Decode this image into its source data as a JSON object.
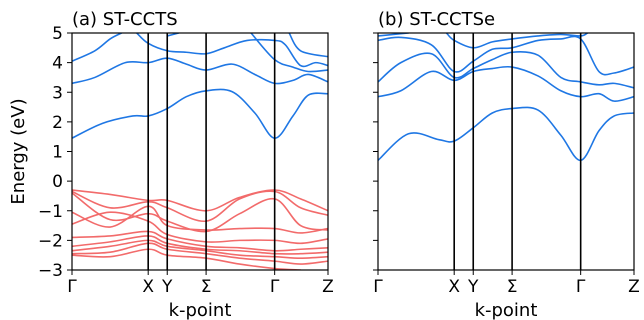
{
  "chart_data": [
    {
      "type": "line",
      "title": "(a) ST-CCTS",
      "xlabel": "k-point",
      "ylabel": "Energy (eV)",
      "ylim": [
        -3,
        5
      ],
      "yticks": [
        -3,
        -2,
        -1,
        0,
        1,
        2,
        3,
        4,
        5
      ],
      "x_ticks": [
        {
          "x": 0.0,
          "label": "Γ"
        },
        {
          "x": 1.0,
          "label": "X"
        },
        {
          "x": 1.25,
          "label": "Y"
        },
        {
          "x": 1.76,
          "label": "Σ"
        },
        {
          "x": 2.66,
          "label": "Γ"
        },
        {
          "x": 3.36,
          "label": "Z"
        }
      ],
      "series": [
        {
          "color": "#1f77e4",
          "band": "conduction",
          "points": [
            [
              0,
              1.45
            ],
            [
              0.4,
              1.95
            ],
            [
              0.8,
              2.2
            ],
            [
              1.0,
              2.2
            ],
            [
              1.25,
              2.45
            ],
            [
              1.5,
              2.85
            ],
            [
              1.76,
              3.05
            ],
            [
              2.1,
              3.02
            ],
            [
              2.4,
              2.3
            ],
            [
              2.66,
              1.45
            ],
            [
              2.9,
              2.2
            ],
            [
              3.1,
              2.9
            ],
            [
              3.36,
              2.95
            ]
          ]
        },
        {
          "color": "#1f77e4",
          "band": "conduction",
          "points": [
            [
              0,
              3.3
            ],
            [
              0.3,
              3.5
            ],
            [
              0.7,
              4.0
            ],
            [
              1.0,
              4.0
            ],
            [
              1.25,
              4.15
            ],
            [
              1.5,
              3.95
            ],
            [
              1.76,
              3.75
            ],
            [
              2.1,
              3.95
            ],
            [
              2.4,
              3.6
            ],
            [
              2.66,
              3.3
            ],
            [
              2.9,
              3.4
            ],
            [
              3.1,
              3.6
            ],
            [
              3.36,
              3.35
            ]
          ]
        },
        {
          "color": "#1f77e4",
          "band": "conduction",
          "points": [
            [
              0,
              4.05
            ],
            [
              0.3,
              4.4
            ],
            [
              0.5,
              4.8
            ],
            [
              0.65,
              5.0
            ]
          ]
        },
        {
          "color": "#1f77e4",
          "band": "conduction",
          "points": [
            [
              0.85,
              5.0
            ],
            [
              1.0,
              4.65
            ],
            [
              1.25,
              4.4
            ],
            [
              1.5,
              4.35
            ],
            [
              1.76,
              4.3
            ],
            [
              2.0,
              4.5
            ],
            [
              2.3,
              4.75
            ],
            [
              2.66,
              4.75
            ],
            [
              2.8,
              4.6
            ],
            [
              3.0,
              3.9
            ],
            [
              3.2,
              4.0
            ],
            [
              3.36,
              3.9
            ]
          ]
        },
        {
          "color": "#1f77e4",
          "band": "conduction",
          "points": [
            [
              1.25,
              4.9
            ],
            [
              1.4,
              5.0
            ]
          ]
        },
        {
          "color": "#1f77e4",
          "band": "conduction",
          "points": [
            [
              2.35,
              5.0
            ],
            [
              2.66,
              4.1
            ],
            [
              2.9,
              3.85
            ],
            [
              3.1,
              3.7
            ],
            [
              3.36,
              3.75
            ]
          ]
        },
        {
          "color": "#1f77e4",
          "band": "conduction",
          "points": [
            [
              2.85,
              5.0
            ],
            [
              3.0,
              4.4
            ],
            [
              3.36,
              4.2
            ]
          ]
        },
        {
          "color": "#f26b6b",
          "band": "valence",
          "points": [
            [
              0,
              -0.3
            ],
            [
              0.5,
              -0.45
            ],
            [
              1.0,
              -0.65
            ],
            [
              1.25,
              -0.65
            ],
            [
              1.76,
              -1.0
            ],
            [
              2.2,
              -0.55
            ],
            [
              2.66,
              -0.3
            ],
            [
              3.0,
              -0.6
            ],
            [
              3.36,
              -1.0
            ]
          ]
        },
        {
          "color": "#f26b6b",
          "band": "valence",
          "points": [
            [
              0,
              -0.35
            ],
            [
              0.5,
              -0.9
            ],
            [
              1.0,
              -0.7
            ],
            [
              1.25,
              -0.9
            ],
            [
              1.76,
              -1.35
            ],
            [
              2.2,
              -0.6
            ],
            [
              2.66,
              -0.35
            ],
            [
              3.0,
              -0.9
            ],
            [
              3.36,
              -1.15
            ]
          ]
        },
        {
          "color": "#f26b6b",
          "band": "valence",
          "points": [
            [
              0,
              -0.4
            ],
            [
              0.5,
              -1.3
            ],
            [
              1.0,
              -1.1
            ],
            [
              1.25,
              -1.35
            ],
            [
              1.76,
              -1.7
            ],
            [
              2.2,
              -1.1
            ],
            [
              2.66,
              -0.6
            ],
            [
              3.0,
              -1.5
            ],
            [
              3.36,
              -1.65
            ]
          ]
        },
        {
          "color": "#f26b6b",
          "band": "valence",
          "points": [
            [
              0,
              -1.05
            ],
            [
              0.5,
              -1.55
            ],
            [
              1.0,
              -0.85
            ],
            [
              1.25,
              -1.5
            ],
            [
              1.76,
              -1.65
            ],
            [
              2.2,
              -1.6
            ],
            [
              2.66,
              -1.6
            ],
            [
              3.0,
              -1.75
            ],
            [
              3.36,
              -1.6
            ]
          ]
        },
        {
          "color": "#f26b6b",
          "band": "valence",
          "points": [
            [
              0,
              -1.45
            ],
            [
              0.5,
              -1.05
            ],
            [
              1.0,
              -1.35
            ],
            [
              1.25,
              -1.8
            ],
            [
              1.76,
              -2.05
            ],
            [
              2.2,
              -2.0
            ],
            [
              2.66,
              -2.0
            ],
            [
              3.0,
              -2.1
            ],
            [
              3.36,
              -1.95
            ]
          ]
        },
        {
          "color": "#f26b6b",
          "band": "valence",
          "points": [
            [
              0,
              -1.9
            ],
            [
              0.5,
              -1.85
            ],
            [
              1.0,
              -1.7
            ],
            [
              1.25,
              -1.95
            ],
            [
              1.76,
              -2.2
            ],
            [
              2.2,
              -2.25
            ],
            [
              2.66,
              -2.35
            ],
            [
              3.0,
              -2.3
            ],
            [
              3.36,
              -2.25
            ]
          ]
        },
        {
          "color": "#f26b6b",
          "band": "valence",
          "points": [
            [
              0,
              -2.2
            ],
            [
              0.5,
              -2.05
            ],
            [
              1.0,
              -1.85
            ],
            [
              1.25,
              -2.1
            ],
            [
              1.76,
              -2.3
            ],
            [
              2.2,
              -2.35
            ],
            [
              2.66,
              -2.45
            ],
            [
              3.0,
              -2.45
            ],
            [
              3.36,
              -2.4
            ]
          ]
        },
        {
          "color": "#f26b6b",
          "band": "valence",
          "points": [
            [
              0,
              -2.35
            ],
            [
              0.5,
              -2.2
            ],
            [
              1.0,
              -2.0
            ],
            [
              1.25,
              -2.2
            ],
            [
              1.76,
              -2.35
            ],
            [
              2.2,
              -2.5
            ],
            [
              2.66,
              -2.55
            ],
            [
              3.0,
              -2.6
            ],
            [
              3.36,
              -2.55
            ]
          ]
        },
        {
          "color": "#f26b6b",
          "band": "valence",
          "points": [
            [
              0,
              -2.45
            ],
            [
              0.5,
              -2.4
            ],
            [
              1.0,
              -2.1
            ],
            [
              1.25,
              -2.3
            ],
            [
              1.76,
              -2.45
            ],
            [
              2.2,
              -2.6
            ],
            [
              2.66,
              -2.7
            ],
            [
              3.0,
              -2.8
            ],
            [
              3.36,
              -2.7
            ]
          ]
        },
        {
          "color": "#f26b6b",
          "band": "valence",
          "points": [
            [
              0,
              -2.5
            ],
            [
              0.5,
              -2.55
            ],
            [
              1.0,
              -2.3
            ],
            [
              1.25,
              -2.5
            ],
            [
              1.76,
              -2.6
            ],
            [
              2.2,
              -2.8
            ],
            [
              2.66,
              -2.95
            ],
            [
              3.0,
              -3.0
            ]
          ]
        }
      ]
    },
    {
      "type": "line",
      "title": "(b) ST-CCTSe",
      "xlabel": "k-point",
      "ylabel": "",
      "ylim": [
        -3,
        5
      ],
      "yticks": [
        -3,
        -2,
        -1,
        0,
        1,
        2,
        3,
        4,
        5
      ],
      "show_ytick_labels": false,
      "x_ticks": [
        {
          "x": 0.0,
          "label": "Γ"
        },
        {
          "x": 1.0,
          "label": "X"
        },
        {
          "x": 1.25,
          "label": "Y"
        },
        {
          "x": 1.76,
          "label": "Σ"
        },
        {
          "x": 2.66,
          "label": "Γ"
        },
        {
          "x": 3.36,
          "label": "Z"
        }
      ],
      "series": [
        {
          "color": "#1f77e4",
          "band": "conduction",
          "points": [
            [
              0,
              0.7
            ],
            [
              0.4,
              1.6
            ],
            [
              0.8,
              1.4
            ],
            [
              1.0,
              1.35
            ],
            [
              1.25,
              1.8
            ],
            [
              1.5,
              2.3
            ],
            [
              1.76,
              2.45
            ],
            [
              2.1,
              2.4
            ],
            [
              2.4,
              1.55
            ],
            [
              2.66,
              0.7
            ],
            [
              2.9,
              1.7
            ],
            [
              3.1,
              2.2
            ],
            [
              3.36,
              2.3
            ]
          ]
        },
        {
          "color": "#1f77e4",
          "band": "conduction",
          "points": [
            [
              0,
              2.85
            ],
            [
              0.3,
              3.05
            ],
            [
              0.7,
              3.7
            ],
            [
              1.0,
              3.4
            ],
            [
              1.25,
              3.7
            ],
            [
              1.5,
              3.8
            ],
            [
              1.76,
              3.85
            ],
            [
              2.1,
              3.55
            ],
            [
              2.4,
              3.05
            ],
            [
              2.66,
              2.85
            ],
            [
              2.9,
              2.95
            ],
            [
              3.1,
              2.7
            ],
            [
              3.36,
              2.85
            ]
          ]
        },
        {
          "color": "#1f77e4",
          "band": "conduction",
          "points": [
            [
              0,
              3.35
            ],
            [
              0.3,
              4.0
            ],
            [
              0.7,
              4.3
            ],
            [
              1.0,
              3.5
            ],
            [
              1.25,
              3.8
            ],
            [
              1.5,
              4.1
            ],
            [
              1.76,
              4.35
            ],
            [
              2.1,
              4.25
            ],
            [
              2.4,
              3.5
            ],
            [
              2.66,
              3.35
            ],
            [
              2.9,
              3.25
            ],
            [
              3.1,
              3.3
            ],
            [
              3.36,
              3.15
            ]
          ]
        },
        {
          "color": "#1f77e4",
          "band": "conduction",
          "points": [
            [
              0,
              4.75
            ],
            [
              0.3,
              4.85
            ],
            [
              0.7,
              4.6
            ],
            [
              1.0,
              3.7
            ],
            [
              1.25,
              4.05
            ],
            [
              1.5,
              4.45
            ],
            [
              1.76,
              4.5
            ],
            [
              2.1,
              4.75
            ],
            [
              2.4,
              4.8
            ],
            [
              2.66,
              4.8
            ],
            [
              2.9,
              3.7
            ],
            [
              3.1,
              3.65
            ],
            [
              3.36,
              3.85
            ]
          ]
        },
        {
          "color": "#1f77e4",
          "band": "conduction",
          "points": [
            [
              0,
              4.9
            ],
            [
              0.4,
              5.0
            ]
          ]
        },
        {
          "color": "#1f77e4",
          "band": "conduction",
          "points": [
            [
              0.9,
              5.0
            ],
            [
              1.0,
              4.75
            ],
            [
              1.25,
              4.5
            ],
            [
              1.5,
              4.7
            ],
            [
              1.76,
              4.8
            ],
            [
              2.1,
              4.9
            ],
            [
              2.4,
              4.95
            ],
            [
              2.66,
              4.9
            ],
            [
              2.75,
              5.0
            ]
          ]
        }
      ]
    }
  ]
}
